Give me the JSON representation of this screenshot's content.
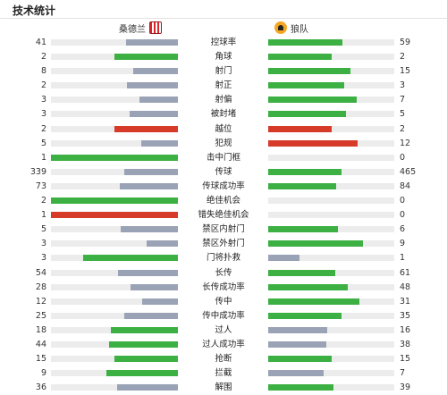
{
  "title": "技术统计",
  "teams": {
    "home": {
      "name": "桑德兰",
      "crest": "sunderland-crest"
    },
    "away": {
      "name": "狼队",
      "crest": "wolves-crest"
    }
  },
  "colors": {
    "green": "#3cb043",
    "red": "#d63b2a",
    "grey": "#9aa3b5",
    "track": "#ececec"
  },
  "stats": [
    {
      "label": "控球率",
      "home": "41",
      "away": "59",
      "home_pct": 41,
      "away_pct": 59,
      "home_color": "grey",
      "away_color": "green"
    },
    {
      "label": "角球",
      "home": "2",
      "away": "2",
      "home_pct": 50,
      "away_pct": 50,
      "home_color": "green",
      "away_color": "green"
    },
    {
      "label": "射门",
      "home": "8",
      "away": "15",
      "home_pct": 35,
      "away_pct": 65,
      "home_color": "grey",
      "away_color": "green"
    },
    {
      "label": "射正",
      "home": "2",
      "away": "3",
      "home_pct": 40,
      "away_pct": 60,
      "home_color": "grey",
      "away_color": "green"
    },
    {
      "label": "射偏",
      "home": "3",
      "away": "7",
      "home_pct": 30,
      "away_pct": 70,
      "home_color": "grey",
      "away_color": "green"
    },
    {
      "label": "被封堵",
      "home": "3",
      "away": "5",
      "home_pct": 38,
      "away_pct": 62,
      "home_color": "grey",
      "away_color": "green"
    },
    {
      "label": "越位",
      "home": "2",
      "away": "2",
      "home_pct": 50,
      "away_pct": 50,
      "home_color": "red",
      "away_color": "red"
    },
    {
      "label": "犯规",
      "home": "5",
      "away": "12",
      "home_pct": 29,
      "away_pct": 71,
      "home_color": "grey",
      "away_color": "red"
    },
    {
      "label": "击中门框",
      "home": "1",
      "away": "0",
      "home_pct": 100,
      "away_pct": 0,
      "home_color": "green",
      "away_color": "grey"
    },
    {
      "label": "传球",
      "home": "339",
      "away": "465",
      "home_pct": 42,
      "away_pct": 58,
      "home_color": "grey",
      "away_color": "green"
    },
    {
      "label": "传球成功率",
      "home": "73",
      "away": "84",
      "home_pct": 46,
      "away_pct": 54,
      "home_color": "grey",
      "away_color": "green"
    },
    {
      "label": "绝佳机会",
      "home": "2",
      "away": "0",
      "home_pct": 100,
      "away_pct": 0,
      "home_color": "green",
      "away_color": "grey"
    },
    {
      "label": "错失绝佳机会",
      "home": "1",
      "away": "0",
      "home_pct": 100,
      "away_pct": 0,
      "home_color": "red",
      "away_color": "grey"
    },
    {
      "label": "禁区内射门",
      "home": "5",
      "away": "6",
      "home_pct": 45,
      "away_pct": 55,
      "home_color": "grey",
      "away_color": "green"
    },
    {
      "label": "禁区外射门",
      "home": "3",
      "away": "9",
      "home_pct": 25,
      "away_pct": 75,
      "home_color": "grey",
      "away_color": "green"
    },
    {
      "label": "门将扑救",
      "home": "3",
      "away": "1",
      "home_pct": 75,
      "away_pct": 25,
      "home_color": "green",
      "away_color": "grey"
    },
    {
      "label": "长传",
      "home": "54",
      "away": "61",
      "home_pct": 47,
      "away_pct": 53,
      "home_color": "grey",
      "away_color": "green"
    },
    {
      "label": "长传成功率",
      "home": "28",
      "away": "48",
      "home_pct": 37,
      "away_pct": 63,
      "home_color": "grey",
      "away_color": "green"
    },
    {
      "label": "传中",
      "home": "12",
      "away": "31",
      "home_pct": 28,
      "away_pct": 72,
      "home_color": "grey",
      "away_color": "green"
    },
    {
      "label": "传中成功率",
      "home": "25",
      "away": "35",
      "home_pct": 42,
      "away_pct": 58,
      "home_color": "grey",
      "away_color": "green"
    },
    {
      "label": "过人",
      "home": "18",
      "away": "16",
      "home_pct": 53,
      "away_pct": 47,
      "home_color": "green",
      "away_color": "grey"
    },
    {
      "label": "过人成功率",
      "home": "44",
      "away": "38",
      "home_pct": 54,
      "away_pct": 46,
      "home_color": "green",
      "away_color": "grey"
    },
    {
      "label": "抢断",
      "home": "15",
      "away": "15",
      "home_pct": 50,
      "away_pct": 50,
      "home_color": "green",
      "away_color": "green"
    },
    {
      "label": "拦截",
      "home": "9",
      "away": "7",
      "home_pct": 56,
      "away_pct": 44,
      "home_color": "green",
      "away_color": "grey"
    },
    {
      "label": "解围",
      "home": "36",
      "away": "39",
      "home_pct": 48,
      "away_pct": 52,
      "home_color": "grey",
      "away_color": "green"
    }
  ]
}
